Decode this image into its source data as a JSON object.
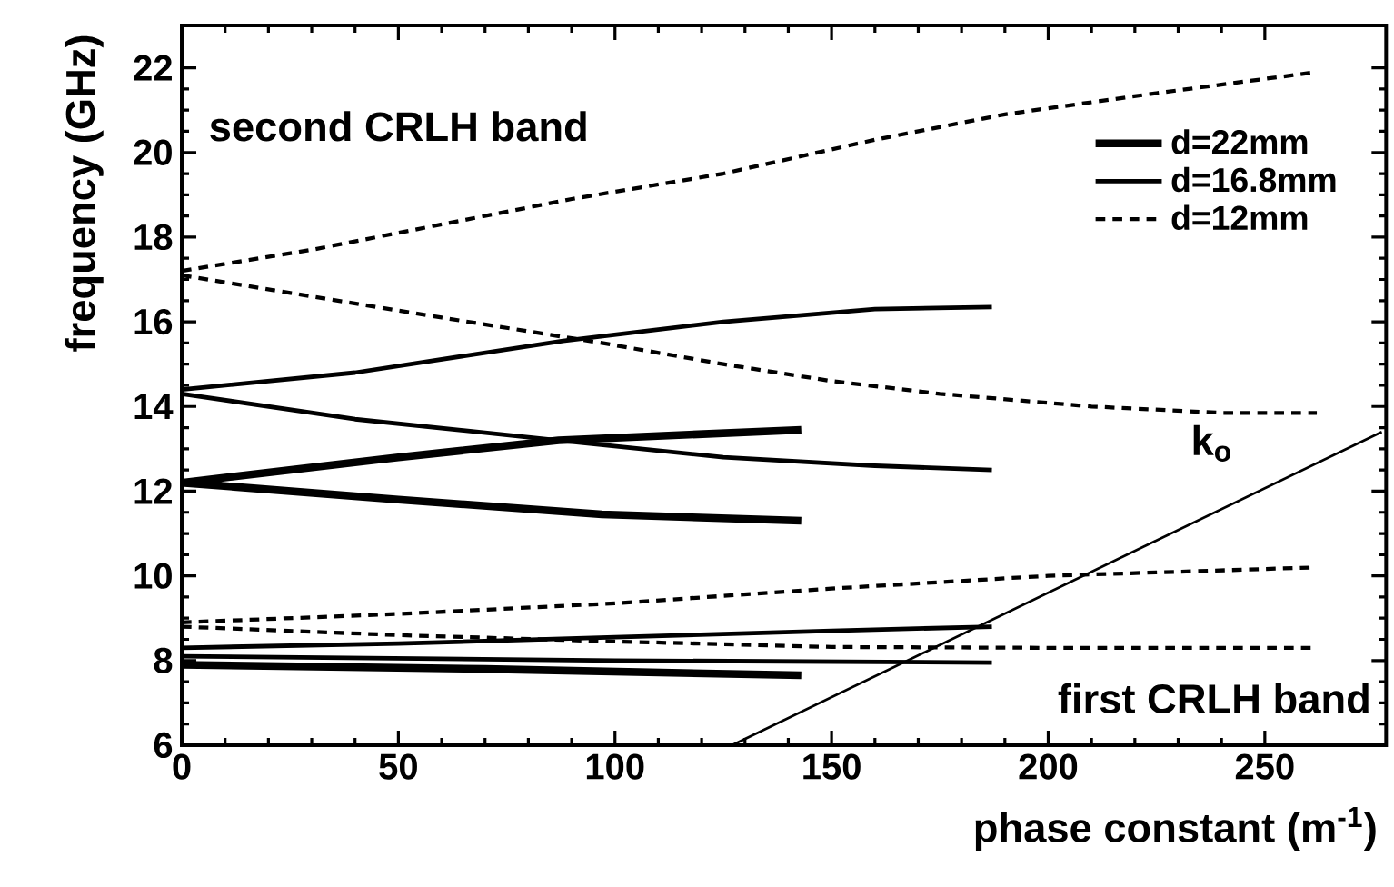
{
  "chart_data": {
    "type": "line",
    "xlabel": "phase constant  (m$^{-1}$)",
    "ylabel": "frequency  (GHz)",
    "xlim": [
      0,
      278
    ],
    "ylim": [
      6,
      23
    ],
    "xticks": [
      0,
      50,
      100,
      150,
      200,
      250
    ],
    "yticks": [
      6,
      8,
      10,
      12,
      14,
      16,
      18,
      20,
      22
    ],
    "legend": "top right",
    "grid": false,
    "marker": "none",
    "series": [
      {
        "name": "d=22mm",
        "color": "#000000",
        "line_style": "solid",
        "x": [
          0,
          50,
          87,
          143,
          null,
          0,
          50,
          97,
          143,
          null,
          0,
          70,
          143
        ],
        "values": [
          12.2,
          12.8,
          13.2,
          13.45,
          null,
          12.2,
          11.8,
          11.45,
          11.3,
          null,
          7.9,
          7.8,
          7.65
        ]
      },
      {
        "name": "d=16.8mm",
        "color": "#000000",
        "line_style": "solid",
        "x": [
          0,
          40,
          88,
          125,
          160,
          187,
          null,
          0,
          40,
          87,
          125,
          160,
          187,
          null,
          0,
          50,
          100,
          150,
          187,
          null,
          0,
          100,
          187
        ],
        "values": [
          14.4,
          14.8,
          15.55,
          16.0,
          16.3,
          16.35,
          null,
          14.3,
          13.7,
          13.2,
          12.8,
          12.6,
          12.5,
          null,
          8.3,
          8.4,
          8.55,
          8.7,
          8.8,
          null,
          8.1,
          8.0,
          7.95
        ]
      },
      {
        "name": "d=12mm",
        "color": "#000000",
        "line_style": "dashed",
        "x": [
          0,
          30,
          60,
          90,
          125,
          160,
          190,
          225,
          262,
          null,
          0,
          30,
          60,
          97,
          125,
          150,
          175,
          210,
          240,
          262,
          null,
          0,
          50,
          100,
          150,
          200,
          262,
          null,
          0,
          50,
          100,
          150,
          200,
          262
        ],
        "values": [
          17.2,
          17.7,
          18.3,
          18.9,
          19.5,
          20.3,
          20.9,
          21.4,
          21.9,
          null,
          17.1,
          16.6,
          16.1,
          15.5,
          15.0,
          14.6,
          14.3,
          14.0,
          13.85,
          13.85,
          null,
          8.9,
          9.1,
          9.35,
          9.7,
          10.0,
          10.2,
          null,
          8.8,
          8.6,
          8.45,
          8.32,
          8.3,
          8.3
        ]
      },
      {
        "color": "#000000",
        "line_style": "solid",
        "x": [
          127,
          277
        ],
        "values": [
          6,
          13.4
        ]
      }
    ],
    "annotations": [
      "second CRLH band",
      "first CRLH band",
      "k$_{o}$"
    ]
  }
}
